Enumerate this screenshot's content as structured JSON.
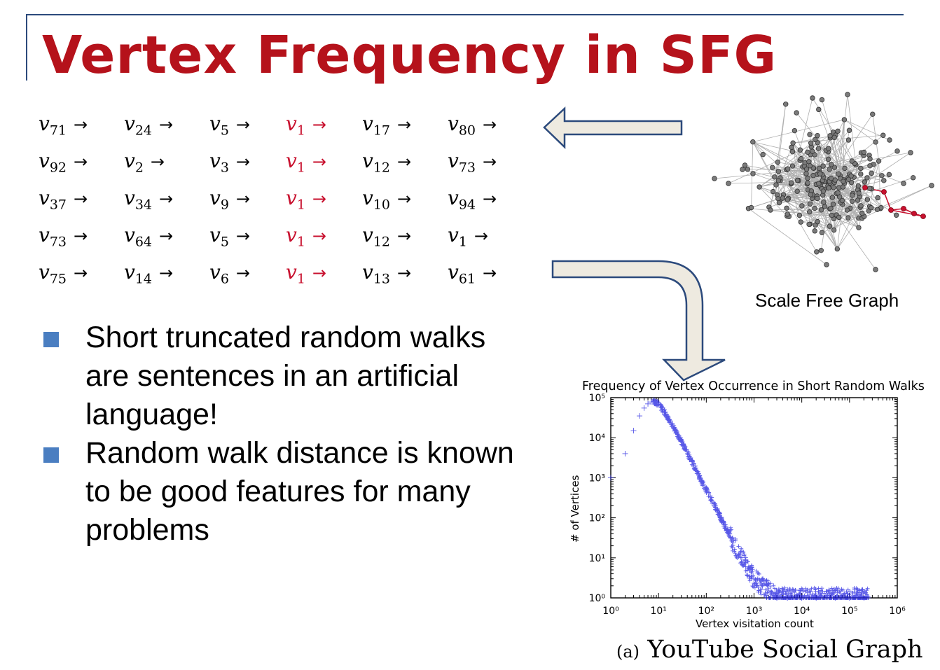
{
  "title": "Vertex Frequency in SFG",
  "walks": [
    [
      "v|71",
      "v|24",
      "v|5",
      "v|1",
      "v|17",
      "v|80"
    ],
    [
      "v|92",
      "v|2",
      "v|3",
      "v|1",
      "v|12",
      "v|73"
    ],
    [
      "v|37",
      "v|34",
      "v|9",
      "v|1",
      "v|10",
      "v|94"
    ],
    [
      "v|73",
      "v|64",
      "v|5",
      "v|1",
      "v|12",
      "v|1"
    ],
    [
      "v|75",
      "v|14",
      "v|6",
      "v|1",
      "v|13",
      "v|61"
    ]
  ],
  "arrow_glyph": "→",
  "highlight_color": "#c8102e",
  "bullets": [
    "Short truncated random walks are sentences in an artificial language!",
    "Random walk distance is known to be good features for many problems"
  ],
  "graph_caption": "Scale Free Graph",
  "chart_data": {
    "type": "scatter",
    "title": "Frequency of Vertex Occurrence in Short Random Walks",
    "xlabel": "Vertex visitation count",
    "ylabel": "# of Vertices",
    "xscale": "log",
    "yscale": "log",
    "xlim": [
      1,
      1000000
    ],
    "ylim": [
      1,
      100000
    ],
    "xticks": [
      "10⁰",
      "10¹",
      "10²",
      "10³",
      "10⁴",
      "10⁵",
      "10⁶"
    ],
    "yticks": [
      "10⁰",
      "10¹",
      "10²",
      "10³",
      "10⁴",
      "10⁵"
    ],
    "series": [
      {
        "marker": "+",
        "color": "#2020e0",
        "x": [
          1,
          2,
          3,
          4,
          5,
          6,
          7,
          8,
          9,
          10,
          15,
          20,
          30,
          50,
          80,
          100,
          150,
          200,
          300,
          500,
          800,
          1000,
          1500,
          2000,
          3000,
          5000,
          10000,
          20000,
          50000,
          100000,
          200000
        ],
        "y": [
          1000,
          4000,
          15000,
          35000,
          55000,
          70000,
          78000,
          80000,
          78000,
          70000,
          35000,
          20000,
          8000,
          2500,
          800,
          500,
          200,
          100,
          40,
          12,
          5,
          3,
          2,
          1.5,
          1,
          1,
          1,
          1,
          1,
          1,
          1
        ]
      }
    ]
  },
  "subcaption_label": "(a)",
  "subcaption_text": "YouTube Social Graph"
}
